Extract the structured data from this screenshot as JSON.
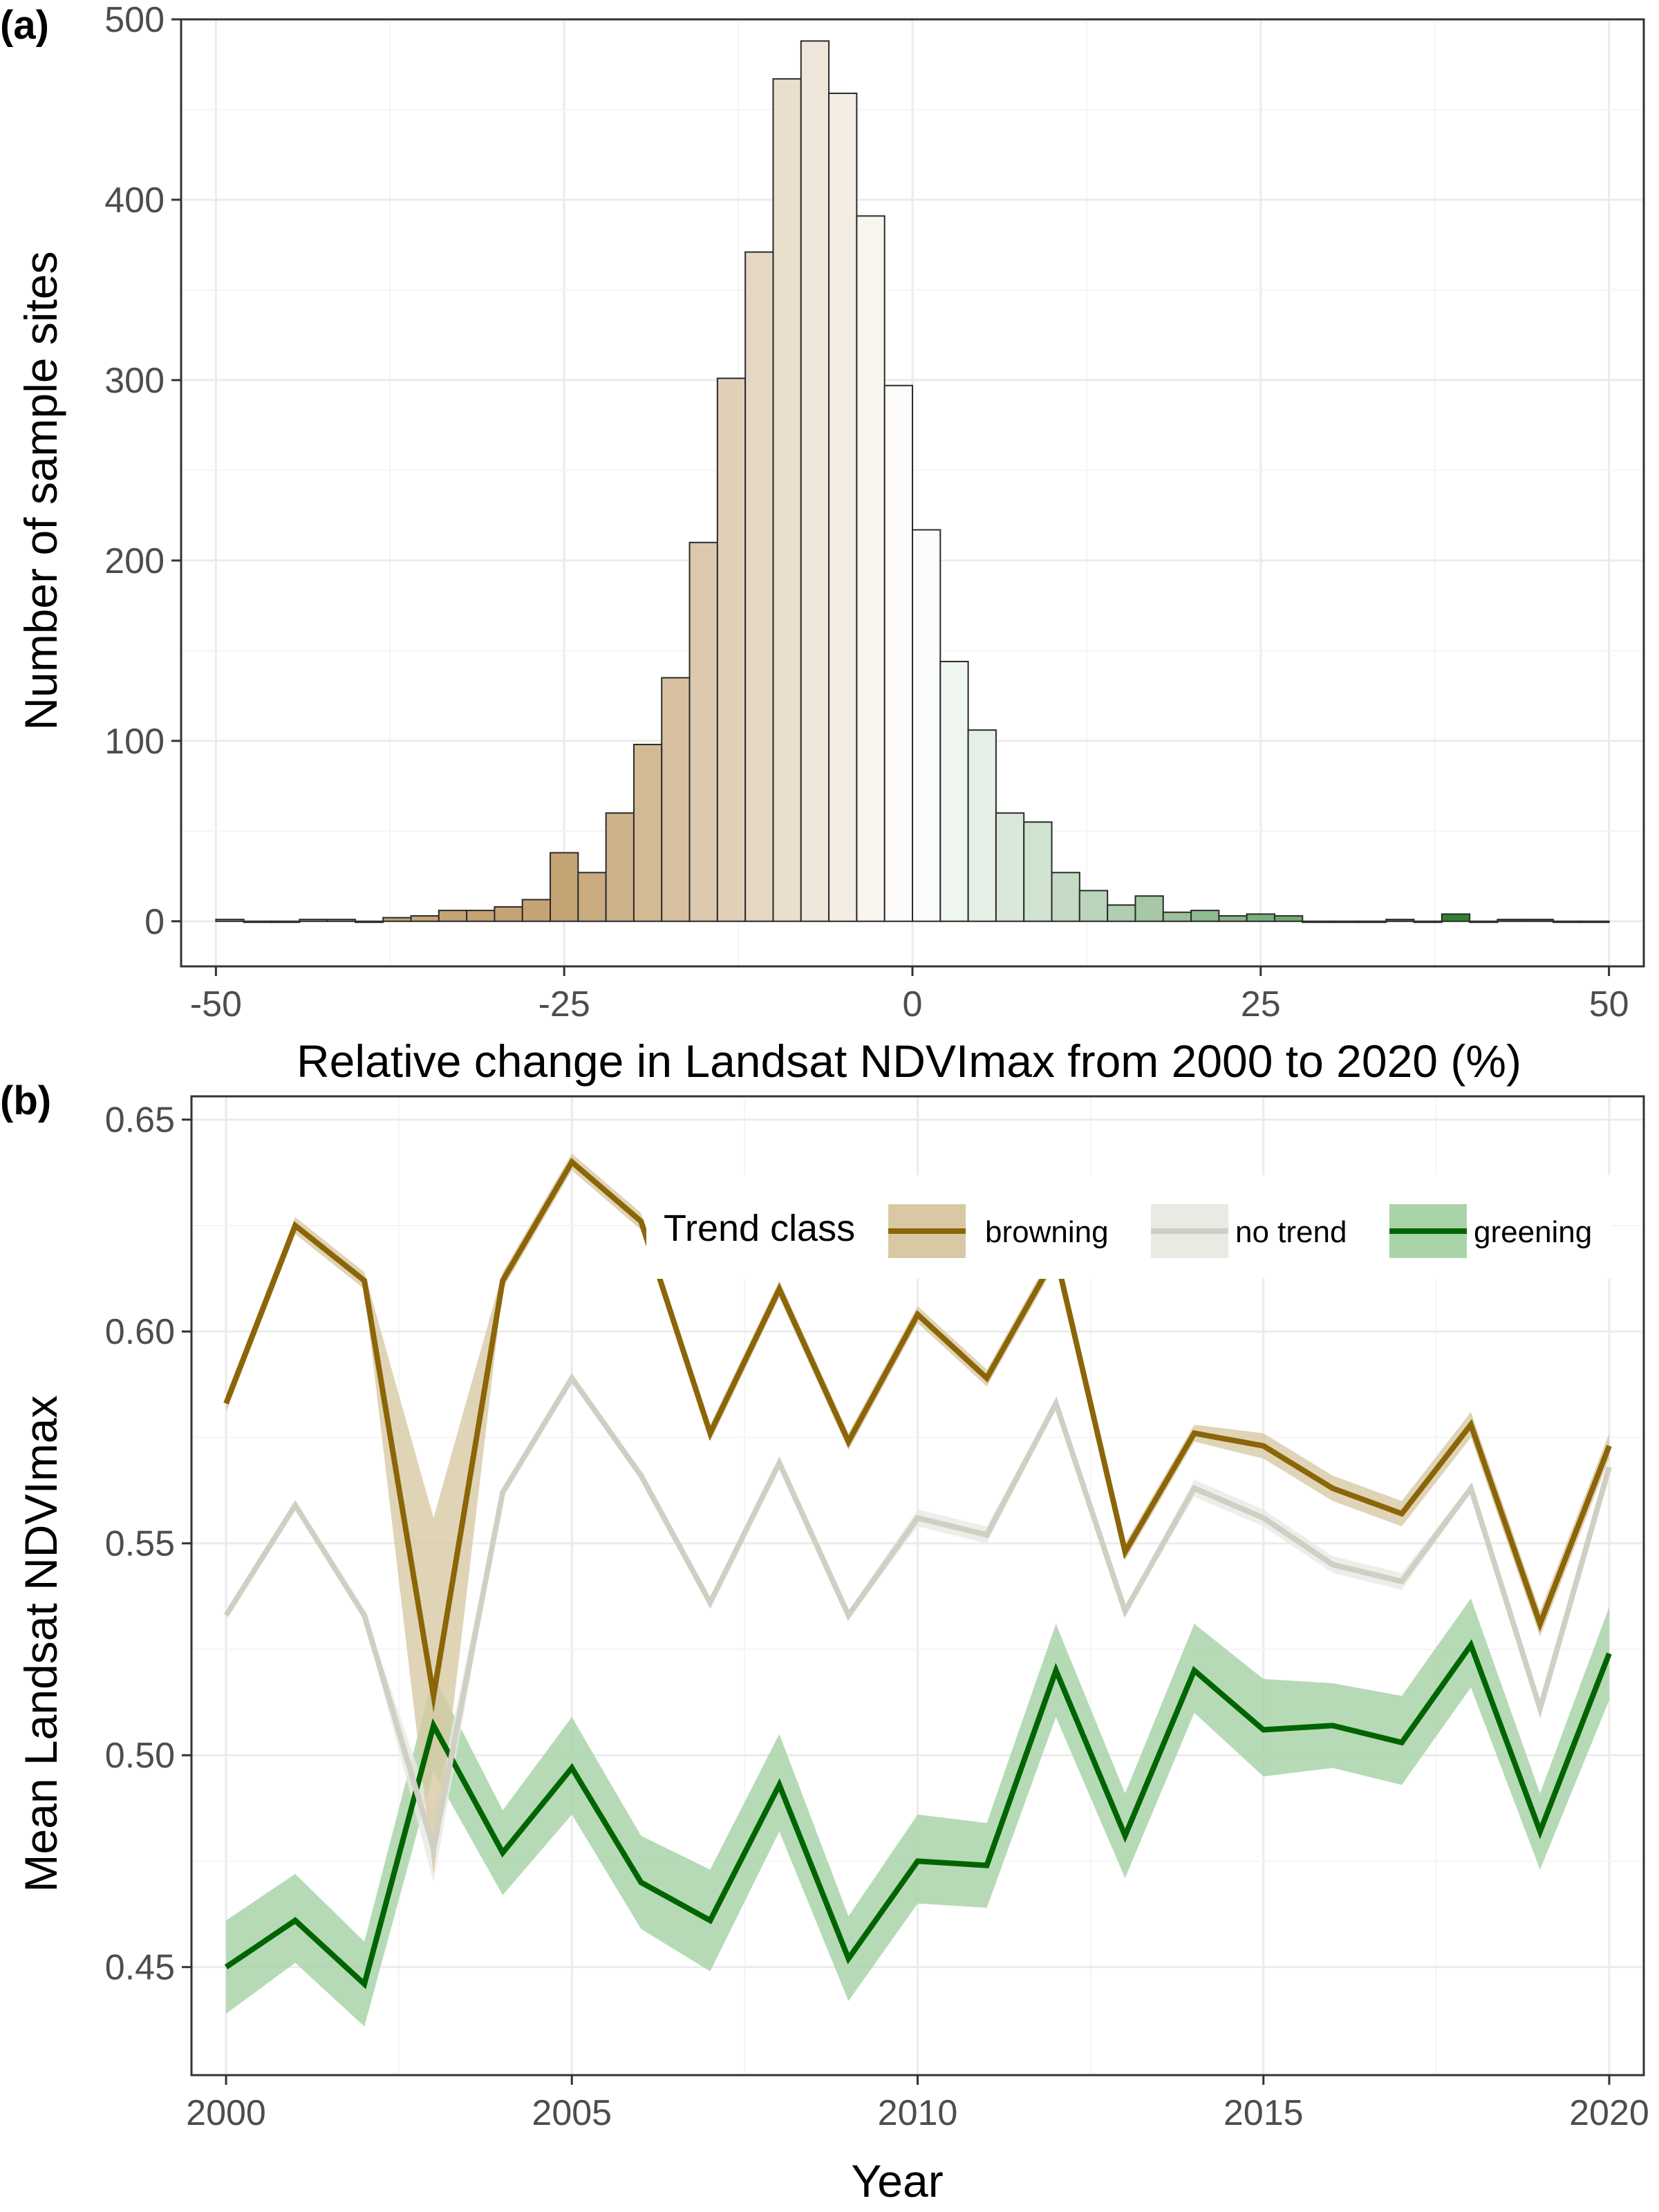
{
  "colors": {
    "browning": "#8b6508",
    "browning_band": "#d8c9a4",
    "no_trend": "#cfcfc4",
    "no_trend_band": "#e9eae4",
    "greening": "#006400",
    "greening_band": "#a9d3a9",
    "hist_brown": "#c4a474",
    "hist_white": "#ffffff",
    "hist_green": "#2e7d2e",
    "grid_major": "#ebebeb",
    "grid_minor": "#f4f4f4"
  },
  "chart_data": [
    {
      "panel": "(a)",
      "type": "bar",
      "xlabel": "Relative change in Landsat NDVImax from 2000 to 2020 (%)",
      "ylabel": "Number of sample sites",
      "xlim": [
        -52.5,
        52.5
      ],
      "ylim": [
        -25,
        500
      ],
      "x_ticks": [
        "-50",
        "-25",
        "0",
        "25",
        "50"
      ],
      "y_ticks": [
        "0",
        "100",
        "200",
        "300",
        "400",
        "500"
      ],
      "bin_width": 2,
      "bin_centers": [
        -49,
        -47,
        -45,
        -43,
        -41,
        -39,
        -37,
        -35,
        -33,
        -31,
        -29,
        -27,
        -25,
        -23,
        -21,
        -19,
        -17,
        -15,
        -13,
        -11,
        -9,
        -7,
        -5,
        -3,
        -1,
        1,
        3,
        5,
        7,
        9,
        11,
        13,
        15,
        17,
        19,
        21,
        23,
        25,
        27,
        29,
        31,
        33,
        35,
        37,
        39,
        41,
        43,
        45,
        47,
        49
      ],
      "values": [
        1,
        0,
        0,
        1,
        1,
        0,
        2,
        3,
        6,
        6,
        8,
        12,
        38,
        27,
        60,
        98,
        135,
        210,
        301,
        371,
        467,
        488,
        459,
        391,
        297,
        217,
        144,
        106,
        60,
        55,
        27,
        17,
        9,
        14,
        5,
        6,
        3,
        4,
        3,
        0,
        0,
        0,
        1,
        0,
        4,
        0,
        1,
        1,
        0,
        0
      ]
    },
    {
      "panel": "(b)",
      "type": "line",
      "xlabel": "Year",
      "ylabel": "Mean Landsat NDVImax",
      "xlim": [
        1999.5,
        2020.5
      ],
      "ylim": [
        0.4245,
        0.6555
      ],
      "x_ticks": [
        "2000",
        "2005",
        "2010",
        "2015",
        "2020"
      ],
      "y_ticks": [
        "0.45",
        "0.50",
        "0.55",
        "0.60",
        "0.65"
      ],
      "x": [
        2000,
        2001,
        2002,
        2003,
        2004,
        2005,
        2006,
        2007,
        2008,
        2009,
        2010,
        2011,
        2012,
        2013,
        2014,
        2015,
        2016,
        2017,
        2018,
        2019,
        2020
      ],
      "legend": {
        "title": "Trend class",
        "position": "top-right (inside)"
      },
      "series": [
        {
          "name": "browning",
          "values": [
            0.583,
            0.625,
            0.612,
            0.514,
            0.612,
            0.64,
            0.626,
            0.576,
            0.61,
            0.574,
            0.604,
            0.589,
            0.618,
            0.548,
            0.576,
            0.573,
            0.563,
            0.557,
            0.578,
            0.531,
            0.573
          ],
          "lower": [
            0.581,
            0.623,
            0.61,
            0.472,
            0.61,
            0.638,
            0.624,
            0.574,
            0.608,
            0.572,
            0.602,
            0.587,
            0.616,
            0.546,
            0.574,
            0.57,
            0.56,
            0.554,
            0.575,
            0.528,
            0.57
          ],
          "upper": [
            0.585,
            0.627,
            0.614,
            0.556,
            0.614,
            0.642,
            0.628,
            0.578,
            0.612,
            0.576,
            0.606,
            0.591,
            0.62,
            0.55,
            0.578,
            0.576,
            0.566,
            0.56,
            0.581,
            0.534,
            0.576
          ]
        },
        {
          "name": "no trend",
          "values": [
            0.533,
            0.559,
            0.533,
            0.478,
            0.562,
            0.589,
            0.566,
            0.536,
            0.569,
            0.533,
            0.556,
            0.552,
            0.583,
            0.534,
            0.563,
            0.556,
            0.545,
            0.541,
            0.563,
            0.511,
            0.568
          ],
          "lower": [
            0.532,
            0.558,
            0.532,
            0.47,
            0.561,
            0.588,
            0.565,
            0.535,
            0.568,
            0.532,
            0.554,
            0.55,
            0.582,
            0.533,
            0.561,
            0.554,
            0.543,
            0.539,
            0.562,
            0.509,
            0.567
          ],
          "upper": [
            0.534,
            0.56,
            0.534,
            0.486,
            0.563,
            0.59,
            0.567,
            0.537,
            0.57,
            0.534,
            0.558,
            0.554,
            0.584,
            0.535,
            0.565,
            0.558,
            0.547,
            0.543,
            0.564,
            0.513,
            0.569
          ]
        },
        {
          "name": "greening",
          "values": [
            0.45,
            0.461,
            0.446,
            0.507,
            0.477,
            0.497,
            0.47,
            0.461,
            0.493,
            0.452,
            0.475,
            0.474,
            0.52,
            0.481,
            0.52,
            0.506,
            0.507,
            0.503,
            0.526,
            0.482,
            0.524
          ],
          "lower": [
            0.439,
            0.451,
            0.436,
            0.496,
            0.467,
            0.486,
            0.459,
            0.449,
            0.482,
            0.442,
            0.465,
            0.464,
            0.509,
            0.471,
            0.51,
            0.495,
            0.497,
            0.493,
            0.516,
            0.473,
            0.513
          ],
          "upper": [
            0.461,
            0.472,
            0.456,
            0.519,
            0.487,
            0.509,
            0.481,
            0.473,
            0.505,
            0.462,
            0.486,
            0.484,
            0.531,
            0.491,
            0.531,
            0.518,
            0.517,
            0.514,
            0.537,
            0.491,
            0.535
          ]
        }
      ]
    }
  ]
}
